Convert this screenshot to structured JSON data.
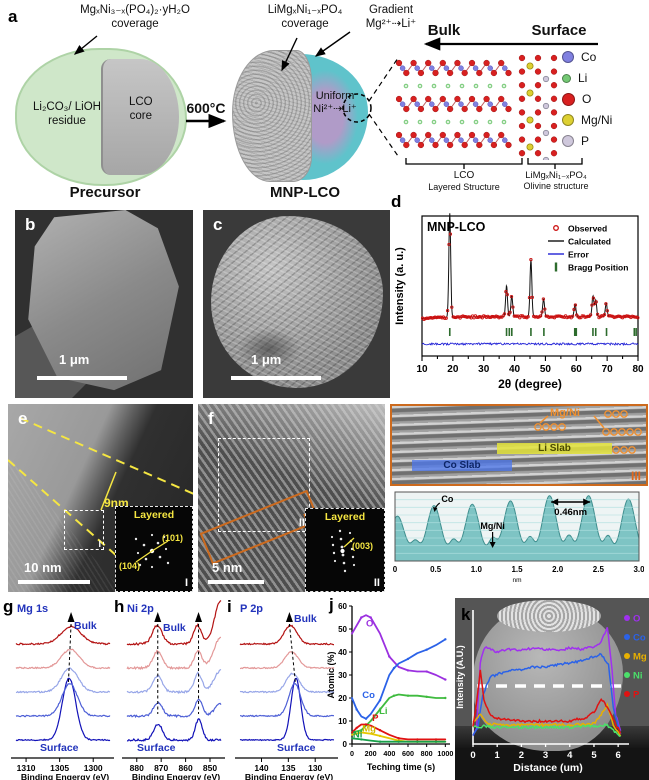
{
  "panels": {
    "a": "a",
    "b": "b",
    "c": "c",
    "d": "d",
    "e": "e",
    "f": "f",
    "g": "g",
    "h": "h",
    "i": "i",
    "j": "j",
    "k": "k"
  },
  "panel_a": {
    "precursor_coating_1": "MgₓNi₃₋ₓ(PO₄)₂·yH₂O",
    "precursor_coating_2": "coverage",
    "shell_1": "Li₂CO₃/ LiOH",
    "shell_2": "residue",
    "core_1": "LCO",
    "core_2": "core",
    "precursor_caption": "Precursor",
    "arrow_label": "600°C",
    "mnp_coating_1": "LiMgₓNi₁₋ₓPO₄",
    "mnp_coating_2": "coverage",
    "gradient_1": "Gradient",
    "gradient_2": "Mg²⁺⇢Li⁺",
    "uniform_1": "Uniform",
    "uniform_2": "Ni²⁺⇢Li⁺",
    "mnp_caption": "MNP-LCO",
    "bulk": "Bulk",
    "surface": "Surface",
    "legend": [
      {
        "label": "Co",
        "color": "#8080e0"
      },
      {
        "label": "Li",
        "color": "#74c874"
      },
      {
        "label": "O",
        "color": "#d82020"
      },
      {
        "label": "Mg/Ni",
        "color": "#ddd032"
      },
      {
        "label": "P",
        "color": "#cfc8dc"
      }
    ],
    "lco_1": "LCO",
    "lco_2": "Layered Structure",
    "olivine_1": "LiMgₓNi₁₋ₓPO₄",
    "olivine_2": "Olivine structure"
  },
  "panel_b": {
    "scalebar": "1 μm"
  },
  "panel_c": {
    "scalebar": "1 μm"
  },
  "panel_e": {
    "thickness": "9nm",
    "scalebar": "10 nm",
    "box_tag": "I",
    "inset": {
      "phase": "Layered",
      "plane_1": "(104)",
      "plane_2": "(101)",
      "tag": "I"
    }
  },
  "panel_f": {
    "scalebar": "5 nm",
    "box_tag": "II",
    "box2_tag": "III",
    "inset": {
      "phase": "Layered",
      "plane_1": "(003)",
      "tag": "II"
    }
  },
  "panel_iii": {
    "co_slab": "Co Slab",
    "li_slab": "Li Slab",
    "mgni": "Mg/Ni",
    "tag": "III"
  },
  "chart_data": [
    {
      "id": "xrd",
      "type": "line",
      "title": "MNP-LCO",
      "xlabel": "2θ (degree)",
      "ylabel": "Intensity (a. u.)",
      "xlim": [
        10,
        80
      ],
      "xticks": [
        10,
        20,
        30,
        40,
        50,
        60,
        70,
        80
      ],
      "legend": [
        {
          "name": "Observed",
          "color": "#cc1111",
          "marker": "circle"
        },
        {
          "name": "Calculated",
          "color": "#111111",
          "marker": "line"
        },
        {
          "name": "Error",
          "color": "#2121d6",
          "marker": "line"
        },
        {
          "name": "Bragg Position",
          "color": "#2d6b2d",
          "marker": "bar"
        }
      ],
      "peaks": [
        {
          "x": 19,
          "h": 1.0
        },
        {
          "x": 37.4,
          "h": 0.3
        },
        {
          "x": 39.1,
          "h": 0.2
        },
        {
          "x": 45.3,
          "h": 0.55
        },
        {
          "x": 49.4,
          "h": 0.17
        },
        {
          "x": 59.6,
          "h": 0.12
        },
        {
          "x": 65.4,
          "h": 0.2
        },
        {
          "x": 66.3,
          "h": 0.16
        },
        {
          "x": 69.7,
          "h": 0.13
        }
      ],
      "bragg_positions": [
        19,
        37.4,
        38.3,
        39.1,
        45.3,
        49.5,
        59.5,
        60.0,
        65.4,
        66.3,
        69.8,
        78.8,
        79.4
      ]
    },
    {
      "id": "xps_mg1s",
      "type": "line",
      "title": "Mg 1s",
      "xlabel": "Binding Engergy (eV)",
      "xlim": [
        1311.5,
        1297.5
      ],
      "xticks": [
        1310,
        1305,
        1300
      ],
      "top_label": "Bulk",
      "bottom_label": "Surface",
      "series": [
        {
          "name": "surface",
          "color": "#1212b8",
          "noise": 1.2,
          "peaks": [
            {
              "x": 1303.6,
              "h": 1.0,
              "w": 1.0
            }
          ]
        },
        {
          "name": "depth-3",
          "color": "#4d5fd6",
          "noise": 1.4,
          "peaks": [
            {
              "x": 1303.5,
              "h": 0.52,
              "w": 1.15
            }
          ]
        },
        {
          "name": "depth-2",
          "color": "#97a6e8",
          "noise": 1.4,
          "peaks": [
            {
              "x": 1303.5,
              "h": 0.38,
              "w": 1.25
            }
          ]
        },
        {
          "name": "depth-1",
          "color": "#e39898",
          "noise": 1.4,
          "peaks": [
            {
              "x": 1303.4,
              "h": 0.3,
              "w": 1.35
            }
          ]
        },
        {
          "name": "bulk",
          "color": "#b31212",
          "noise": 1.6,
          "peaks": [
            {
              "x": 1303.3,
              "h": 0.28,
              "w": 1.5
            }
          ]
        }
      ],
      "guides": [
        {
          "x_top": 1303.3,
          "x_bot": 1303.7,
          "to": 86
        }
      ],
      "bulk_xy": [
        72,
        31
      ],
      "surface_xy": [
        38,
        153
      ]
    },
    {
      "id": "xps_ni2p",
      "type": "line",
      "title": "Ni 2p",
      "xlabel": "Binding Engergy (eV)",
      "xlim": [
        884,
        845.5
      ],
      "xticks": [
        880,
        870,
        860,
        850
      ],
      "top_label": "Bulk",
      "bottom_label": "Surface",
      "series": [
        {
          "name": "surface",
          "color": "#1212b8",
          "noise": 2.0,
          "peaks": [
            {
              "x": 854.6,
              "h": 0.34,
              "w": 1.4
            },
            {
              "x": 871.3,
              "h": 0.26,
              "w": 1.8
            }
          ]
        },
        {
          "name": "depth-3",
          "color": "#4d5fd6",
          "noise": 2.0,
          "peaks": [
            {
              "x": 854.6,
              "h": 0.26,
              "w": 1.5
            },
            {
              "x": 871.3,
              "h": 0.22,
              "w": 1.8
            },
            {
              "x": 845.5,
              "h": 0.2,
              "w": 2.5
            }
          ]
        },
        {
          "name": "depth-2",
          "color": "#97a6e8",
          "noise": 2.0,
          "peaks": [
            {
              "x": 854.9,
              "h": 0.3,
              "w": 1.6
            },
            {
              "x": 871.5,
              "h": 0.26,
              "w": 1.9
            },
            {
              "x": 845.5,
              "h": 0.35,
              "w": 2.8
            }
          ]
        },
        {
          "name": "depth-1",
          "color": "#e39898",
          "noise": 2.0,
          "peaks": [
            {
              "x": 854.9,
              "h": 0.27,
              "w": 1.6
            },
            {
              "x": 871.5,
              "h": 0.27,
              "w": 1.9
            },
            {
              "x": 845.5,
              "h": 0.5,
              "w": 2.8
            }
          ]
        },
        {
          "name": "bulk",
          "color": "#b31212",
          "noise": 2.2,
          "peaks": [
            {
              "x": 855.1,
              "h": 0.3,
              "w": 1.6
            },
            {
              "x": 871.6,
              "h": 0.3,
              "w": 2.0
            },
            {
              "x": 845.5,
              "h": 0.7,
              "w": 2.6
            }
          ]
        }
      ],
      "guides": [
        {
          "x_top": 871.4,
          "x_bot": 871.4,
          "to": 116
        },
        {
          "x_top": 854.7,
          "x_bot": 854.7,
          "to": 116
        }
      ],
      "bulk_xy": [
        50,
        33
      ],
      "surface_xy": [
        24,
        153
      ]
    },
    {
      "id": "xps_p2p",
      "type": "line",
      "title": "P 2p",
      "xlabel": "Binding Engergy (eV)",
      "xlim": [
        144,
        126.5
      ],
      "xticks": [
        140,
        135,
        130
      ],
      "top_label": "Bulk",
      "bottom_label": "Surface",
      "series": [
        {
          "name": "surface",
          "color": "#1212b8",
          "noise": 1.0,
          "peaks": [
            {
              "x": 133.6,
              "h": 1.0,
              "w": 0.9
            }
          ]
        },
        {
          "name": "depth-3",
          "color": "#4d5fd6",
          "noise": 1.2,
          "peaks": [
            {
              "x": 133.8,
              "h": 0.52,
              "w": 1.1
            }
          ]
        },
        {
          "name": "depth-2",
          "color": "#97a6e8",
          "noise": 1.2,
          "peaks": [
            {
              "x": 134.2,
              "h": 0.3,
              "w": 1.2
            }
          ]
        },
        {
          "name": "depth-1",
          "color": "#e39898",
          "noise": 1.2,
          "peaks": [
            {
              "x": 134.4,
              "h": 0.26,
              "w": 1.25
            }
          ]
        },
        {
          "name": "bulk",
          "color": "#b31212",
          "noise": 1.4,
          "peaks": [
            {
              "x": 134.6,
              "h": 0.3,
              "w": 1.2
            }
          ]
        }
      ],
      "guides": [
        {
          "x_top": 134.8,
          "x_bot": 133.7,
          "to": 84
        }
      ],
      "bulk_xy": [
        68,
        24
      ],
      "surface_xy": [
        51,
        153
      ]
    },
    {
      "id": "depth_profile",
      "type": "line",
      "xlabel": "Teching time (s)",
      "ylabel": "Atomic (%)",
      "xlim": [
        0,
        1050
      ],
      "ylim": [
        0,
        60
      ],
      "xticks": [
        0,
        200,
        400,
        600,
        800,
        1000
      ],
      "yticks": [
        0,
        10,
        20,
        30,
        40,
        50,
        60
      ],
      "series": [
        {
          "name": "O",
          "color": "#9b30e0",
          "x": [
            0,
            100,
            150,
            200,
            300,
            400,
            500,
            600,
            700,
            800,
            900,
            1000
          ],
          "y": [
            48,
            55,
            56,
            55,
            48,
            38,
            33.5,
            32,
            31.5,
            31.5,
            30,
            28
          ]
        },
        {
          "name": "Co",
          "color": "#2b62e8",
          "x": [
            0,
            50,
            100,
            150,
            200,
            300,
            400,
            450,
            500,
            600,
            700,
            800,
            900,
            1000
          ],
          "y": [
            20,
            15,
            12,
            11,
            13,
            19,
            30,
            33,
            35,
            37,
            39.5,
            41,
            43,
            45.5
          ]
        },
        {
          "name": "Li",
          "color": "#3fbb3f",
          "x": [
            0,
            100,
            200,
            300,
            400,
            450,
            500,
            600,
            700,
            800,
            900,
            1000
          ],
          "y": [
            5,
            6,
            10,
            15,
            20,
            21,
            21.5,
            21,
            21,
            20.5,
            20,
            20
          ]
        },
        {
          "name": "P",
          "color": "#e01212",
          "x": [
            0,
            50,
            100,
            150,
            200,
            300,
            400,
            500,
            600,
            700,
            800,
            900,
            1000
          ],
          "y": [
            5,
            7,
            8.5,
            8.5,
            8,
            6,
            4,
            2.5,
            2,
            2,
            2,
            2,
            2
          ]
        },
        {
          "name": "Mg",
          "color": "#e6c800",
          "x": [
            0,
            100,
            200,
            300,
            400,
            500,
            600,
            700,
            800,
            900,
            1000
          ],
          "y": [
            4,
            5,
            4.5,
            3.5,
            2.5,
            1.5,
            1,
            1,
            1,
            1,
            1
          ]
        },
        {
          "name": "Ni",
          "color": "#18a04a",
          "x": [
            0,
            100,
            200,
            300,
            400,
            500,
            600,
            700,
            800,
            900,
            1000
          ],
          "y": [
            2.5,
            2,
            1.5,
            1,
            1,
            1,
            1,
            1,
            1,
            1,
            1
          ]
        }
      ],
      "labels": [
        {
          "text": "O",
          "x": 150,
          "y": 51,
          "color": "#9b30e0"
        },
        {
          "text": "Co",
          "x": 110,
          "y": 20,
          "color": "#2b62e8"
        },
        {
          "text": "Li",
          "x": 290,
          "y": 13,
          "color": "#3fbb3f"
        },
        {
          "text": "P",
          "x": 215,
          "y": 10,
          "color": "#e01212"
        },
        {
          "text": "Mg",
          "x": 110,
          "y": 5.5,
          "color": "#d4b800"
        },
        {
          "text": "Ni",
          "x": 10,
          "y": 2.8,
          "color": "#18a04a"
        }
      ]
    },
    {
      "id": "eds_linescan",
      "type": "line",
      "xlabel": "Distance (um)",
      "ylabel": "Intensity (A.U.)",
      "xlim": [
        0,
        6.2
      ],
      "xticks": [
        0,
        1,
        2,
        3,
        4,
        5,
        6
      ],
      "legend": [
        {
          "name": "O",
          "color": "#a030f0"
        },
        {
          "name": "Co",
          "color": "#2b62e8"
        },
        {
          "name": "Mg",
          "color": "#e8b000"
        },
        {
          "name": "Ni",
          "color": "#4be06a"
        },
        {
          "name": "P",
          "color": "#e01212"
        }
      ],
      "series": [
        {
          "name": "O",
          "color": "#a030f0",
          "x": [
            0,
            0.15,
            0.3,
            0.5,
            1,
            1.5,
            2,
            2.5,
            3,
            3.5,
            4,
            4.5,
            5,
            5.3,
            5.55,
            5.75,
            5.9,
            6.1
          ],
          "y": [
            0.04,
            0.1,
            0.62,
            0.74,
            0.7,
            0.72,
            0.71,
            0.73,
            0.72,
            0.71,
            0.73,
            0.72,
            0.74,
            0.78,
            0.9,
            0.55,
            0.2,
            0.08
          ]
        },
        {
          "name": "Co",
          "color": "#2b62e8",
          "x": [
            0,
            0.2,
            0.4,
            0.7,
            1,
            1.5,
            2,
            2.5,
            3,
            3.5,
            4,
            4.5,
            5,
            5.3,
            5.6,
            5.8,
            6.1
          ],
          "y": [
            0.03,
            0.1,
            0.35,
            0.5,
            0.52,
            0.55,
            0.56,
            0.58,
            0.58,
            0.6,
            0.61,
            0.63,
            0.66,
            0.68,
            0.6,
            0.25,
            0.05
          ]
        },
        {
          "name": "Mg",
          "color": "#e8b000",
          "x": [
            0,
            0.3,
            0.6,
            1,
            2,
            3,
            4,
            5,
            5.3,
            5.55,
            5.8,
            6.1
          ],
          "y": [
            0.14,
            0.2,
            0.13,
            0.12,
            0.12,
            0.12,
            0.12,
            0.13,
            0.2,
            0.28,
            0.12,
            0.04
          ]
        },
        {
          "name": "Ni",
          "color": "#4be06a",
          "x": [
            0,
            0.5,
            1,
            2,
            3,
            4,
            5,
            5.5,
            5.8,
            6.1
          ],
          "y": [
            0.1,
            0.11,
            0.1,
            0.1,
            0.1,
            0.1,
            0.11,
            0.12,
            0.08,
            0.03
          ]
        },
        {
          "name": "P",
          "color": "#e01212",
          "x": [
            0,
            0.15,
            0.3,
            0.45,
            0.7,
            1,
            1.5,
            2,
            3,
            4,
            4.7,
            5,
            5.3,
            5.6,
            5.9,
            6.1
          ],
          "y": [
            0.1,
            0.3,
            0.55,
            0.32,
            0.2,
            0.17,
            0.16,
            0.15,
            0.15,
            0.15,
            0.18,
            0.22,
            0.33,
            0.25,
            0.12,
            0.06
          ]
        }
      ]
    },
    {
      "id": "intensity_profile",
      "type": "area",
      "fill": "#7ec4c4",
      "stroke": "#3f8e8e",
      "grid_color": "#b0e0e0",
      "xlim": [
        0,
        3.0
      ],
      "xticks": [
        "0",
        "0.5",
        "1.0",
        "1.5",
        "2.0",
        "2.5",
        "3.0"
      ],
      "x_unit": "nm",
      "co_label": "Co",
      "mgni_label": "Mg/Ni",
      "spacing_label": "0.46nm",
      "main_peaks": [
        {
          "x": 0.03,
          "h": 0.62
        },
        {
          "x": 0.48,
          "h": 0.78
        },
        {
          "x": 0.95,
          "h": 0.8
        },
        {
          "x": 1.42,
          "h": 0.85
        },
        {
          "x": 1.9,
          "h": 0.93
        },
        {
          "x": 2.38,
          "h": 0.93
        },
        {
          "x": 2.87,
          "h": 0.88
        }
      ],
      "minor_peaks": [
        {
          "x": 0.25,
          "h": 0.22
        },
        {
          "x": 0.72,
          "h": 0.24
        },
        {
          "x": 1.2,
          "h": 0.26
        },
        {
          "x": 1.66,
          "h": 0.28
        },
        {
          "x": 2.14,
          "h": 0.3
        },
        {
          "x": 2.62,
          "h": 0.3
        }
      ]
    }
  ]
}
